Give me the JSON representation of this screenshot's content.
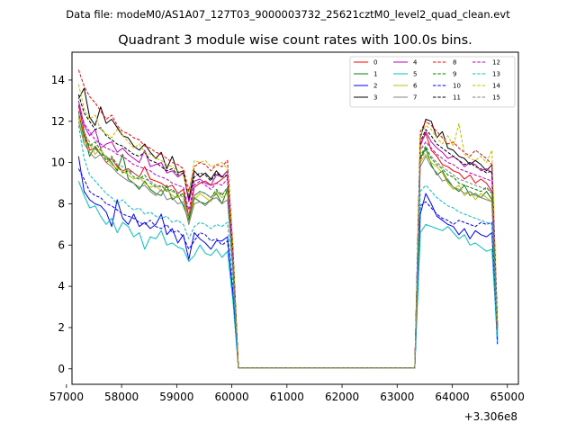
{
  "chart_data": {
    "type": "line",
    "suptitle": "Data file: modeM0/AS1A07_127T03_9000003732_25621cztM0_level2_quad_clean.evt",
    "title": "Quadrant 3 module wise count rates with 100.0s bins.",
    "xlabel": "",
    "ylabel": "",
    "x_offset_label": "+3.306e8",
    "xlim": [
      57100,
      65200
    ],
    "ylim": [
      -0.75,
      15.35
    ],
    "xticks": [
      57000,
      58000,
      59000,
      60000,
      61000,
      62000,
      63000,
      64000,
      65000
    ],
    "xtick_labels": [
      "57000",
      "58000",
      "59000",
      "60000",
      "61000",
      "62000",
      "63000",
      "64000",
      "65000"
    ],
    "yticks": [
      0,
      2,
      4,
      6,
      8,
      10,
      12,
      14
    ],
    "ytick_labels": [
      "0",
      "2",
      "4",
      "6",
      "8",
      "10",
      "12",
      "14"
    ],
    "legend_position": "upper-right",
    "legend_columns": 4,
    "x": [
      57220,
      57320,
      57420,
      57520,
      57620,
      57720,
      57820,
      57920,
      58020,
      58120,
      58220,
      58320,
      58420,
      58520,
      58620,
      58720,
      58820,
      58920,
      59020,
      59120,
      59220,
      59320,
      59420,
      59520,
      59620,
      59720,
      59820,
      59920,
      60020,
      60120,
      60220,
      63320,
      63420,
      63520,
      63620,
      63720,
      63820,
      63920,
      64020,
      64120,
      64220,
      64320,
      64420,
      64520,
      64620,
      64720,
      64820
    ],
    "series": [
      {
        "name": "0",
        "color": "#ff0000",
        "dashed": false,
        "values": [
          12.8,
          11.5,
          10.6,
          10.7,
          10.4,
          10.0,
          10.2,
          9.8,
          9.6,
          9.7,
          9.5,
          9.3,
          9.8,
          9.2,
          9.1,
          9.0,
          8.8,
          8.9,
          8.5,
          8.7,
          7.4,
          8.8,
          9.0,
          9.1,
          8.9,
          9.0,
          9.2,
          9.4,
          5.5,
          0.05,
          0.05,
          0.05,
          10.9,
          11.4,
          10.6,
          10.3,
          9.9,
          9.8,
          9.6,
          9.5,
          9.2,
          9.4,
          9.0,
          9.2,
          9.0,
          8.6,
          2.0
        ]
      },
      {
        "name": "1",
        "color": "#008000",
        "dashed": false,
        "values": [
          12.2,
          11.3,
          10.3,
          10.8,
          10.4,
          10.3,
          10.0,
          9.6,
          10.4,
          9.2,
          9.0,
          8.7,
          9.1,
          8.7,
          8.5,
          8.4,
          8.9,
          8.2,
          8.4,
          7.9,
          7.2,
          8.3,
          8.1,
          8.0,
          8.2,
          8.5,
          8.0,
          8.7,
          5.0,
          0.05,
          0.05,
          0.05,
          10.2,
          10.7,
          9.9,
          9.4,
          9.6,
          9.1,
          8.8,
          8.6,
          8.9,
          8.4,
          8.5,
          8.3,
          8.6,
          8.2,
          1.9
        ]
      },
      {
        "name": "2",
        "color": "#0000ff",
        "dashed": false,
        "values": [
          10.3,
          8.6,
          8.2,
          8.0,
          7.9,
          7.6,
          6.9,
          8.2,
          7.3,
          7.0,
          7.5,
          6.9,
          7.1,
          6.8,
          7.0,
          7.5,
          6.5,
          6.8,
          6.1,
          6.5,
          5.3,
          6.6,
          6.3,
          6.1,
          5.8,
          6.2,
          6.2,
          6.4,
          3.6,
          0.05,
          0.05,
          0.05,
          7.5,
          8.5,
          8.0,
          7.4,
          7.2,
          7.0,
          6.9,
          6.5,
          6.8,
          6.3,
          6.7,
          6.5,
          6.4,
          6.6,
          1.2
        ]
      },
      {
        "name": "3",
        "color": "#000000",
        "dashed": false,
        "values": [
          13.1,
          13.6,
          12.2,
          11.8,
          12.7,
          11.9,
          12.1,
          11.7,
          11.3,
          11.2,
          10.8,
          10.6,
          10.9,
          10.5,
          10.2,
          10.5,
          9.7,
          10.3,
          9.5,
          9.6,
          8.2,
          9.6,
          9.3,
          9.5,
          9.2,
          9.6,
          9.3,
          9.6,
          5.8,
          0.05,
          0.05,
          0.05,
          11.2,
          12.1,
          12.0,
          11.2,
          11.5,
          10.7,
          10.6,
          10.3,
          10.2,
          9.9,
          10.1,
          9.9,
          9.6,
          9.9,
          2.2
        ]
      },
      {
        "name": "4",
        "color": "#bf00bf",
        "dashed": false,
        "values": [
          13.0,
          11.8,
          11.3,
          11.6,
          10.7,
          10.9,
          11.0,
          10.5,
          10.7,
          10.4,
          10.2,
          10.0,
          10.6,
          9.8,
          9.9,
          10.0,
          9.5,
          9.6,
          9.3,
          9.5,
          8.1,
          9.1,
          9.2,
          9.0,
          8.9,
          9.4,
          9.3,
          9.6,
          5.6,
          0.05,
          0.05,
          0.05,
          10.8,
          11.5,
          11.0,
          10.7,
          10.5,
          10.2,
          10.3,
          10.1,
          9.8,
          10.0,
          9.9,
          9.6,
          9.7,
          9.5,
          2.1
        ]
      },
      {
        "name": "5",
        "color": "#00bfbf",
        "dashed": false,
        "values": [
          9.1,
          8.4,
          7.8,
          7.9,
          7.4,
          7.0,
          7.3,
          6.6,
          7.1,
          6.9,
          6.4,
          6.6,
          5.8,
          6.4,
          6.3,
          6.7,
          6.0,
          6.1,
          5.9,
          5.8,
          5.2,
          5.5,
          6.0,
          5.6,
          5.5,
          5.8,
          5.4,
          5.7,
          3.3,
          0.05,
          0.05,
          0.05,
          6.6,
          7.0,
          6.9,
          6.8,
          6.7,
          6.9,
          6.6,
          6.3,
          6.5,
          6.0,
          6.1,
          5.9,
          5.7,
          5.8,
          1.3
        ]
      },
      {
        "name": "6",
        "color": "#bfbf00",
        "dashed": false,
        "values": [
          12.3,
          11.0,
          10.9,
          10.4,
          10.7,
          10.2,
          9.9,
          9.7,
          9.6,
          9.4,
          9.2,
          9.3,
          9.0,
          8.8,
          8.9,
          8.6,
          8.7,
          8.4,
          8.3,
          8.5,
          7.0,
          8.2,
          8.5,
          8.3,
          8.1,
          8.6,
          8.3,
          8.5,
          4.9,
          0.05,
          0.05,
          0.05,
          10.0,
          10.4,
          10.0,
          9.8,
          9.5,
          9.0,
          8.7,
          8.9,
          8.4,
          8.6,
          8.2,
          8.5,
          8.3,
          8.1,
          1.8
        ]
      },
      {
        "name": "7",
        "color": "#808080",
        "dashed": false,
        "values": [
          12.0,
          10.9,
          10.5,
          10.2,
          10.4,
          10.0,
          9.8,
          9.5,
          9.3,
          9.1,
          9.0,
          8.8,
          8.9,
          8.6,
          8.4,
          8.7,
          8.2,
          8.3,
          8.0,
          8.1,
          7.0,
          8.0,
          8.1,
          7.9,
          8.2,
          8.3,
          8.0,
          8.2,
          4.8,
          0.05,
          0.05,
          0.05,
          9.8,
          10.3,
          9.8,
          9.5,
          9.1,
          9.2,
          8.8,
          8.7,
          8.5,
          8.6,
          8.4,
          8.3,
          8.2,
          8.1,
          1.8
        ]
      },
      {
        "name": "8",
        "color": "#ff0000",
        "dashed": true,
        "values": [
          14.5,
          13.7,
          13.2,
          12.9,
          12.5,
          12.1,
          12.3,
          11.8,
          11.5,
          11.4,
          11.2,
          11.1,
          10.8,
          10.7,
          10.5,
          10.4,
          10.2,
          10.0,
          9.9,
          9.7,
          8.6,
          9.8,
          10.0,
          9.9,
          9.6,
          9.9,
          9.8,
          10.1,
          6.0,
          0.05,
          0.05,
          0.05,
          11.5,
          12.0,
          11.8,
          11.5,
          11.2,
          10.9,
          11.0,
          10.7,
          10.5,
          10.3,
          10.6,
          10.4,
          10.2,
          9.9,
          2.4
        ]
      },
      {
        "name": "9",
        "color": "#008000",
        "dashed": true,
        "values": [
          12.5,
          11.2,
          10.8,
          11.0,
          10.6,
          10.1,
          10.3,
          9.9,
          9.5,
          9.6,
          9.3,
          9.2,
          9.4,
          9.0,
          8.8,
          8.9,
          8.6,
          8.7,
          8.4,
          8.5,
          7.3,
          8.4,
          8.6,
          8.5,
          8.3,
          8.7,
          8.4,
          8.8,
          5.1,
          0.05,
          0.05,
          0.05,
          10.3,
          10.8,
          10.2,
          9.9,
          9.7,
          9.4,
          9.3,
          9.0,
          8.9,
          8.8,
          8.7,
          8.6,
          8.8,
          8.5,
          1.9
        ]
      },
      {
        "name": "10",
        "color": "#0000ff",
        "dashed": true,
        "values": [
          9.7,
          9.2,
          8.6,
          8.4,
          8.3,
          8.0,
          7.9,
          7.7,
          7.5,
          7.4,
          7.3,
          7.1,
          7.0,
          7.2,
          6.9,
          6.8,
          7.0,
          6.6,
          6.7,
          6.4,
          5.8,
          6.2,
          6.6,
          6.5,
          6.2,
          6.3,
          6.0,
          6.2,
          3.8,
          0.05,
          0.05,
          0.05,
          7.9,
          8.1,
          7.8,
          7.5,
          7.3,
          7.2,
          7.0,
          7.2,
          7.1,
          7.0,
          6.9,
          7.1,
          7.0,
          7.1,
          1.4
        ]
      },
      {
        "name": "11",
        "color": "#000000",
        "dashed": true,
        "values": [
          13.3,
          12.4,
          12.0,
          11.6,
          11.7,
          11.3,
          11.1,
          10.9,
          10.8,
          10.6,
          10.4,
          10.3,
          10.5,
          10.1,
          10.0,
          9.8,
          9.6,
          9.7,
          9.4,
          9.5,
          8.3,
          9.3,
          9.5,
          9.4,
          9.1,
          9.5,
          9.3,
          9.4,
          5.6,
          0.05,
          0.05,
          0.05,
          11.0,
          11.6,
          11.3,
          10.9,
          10.7,
          10.5,
          10.3,
          10.1,
          9.9,
          10.0,
          9.8,
          9.7,
          9.5,
          9.6,
          2.1
        ]
      },
      {
        "name": "12",
        "color": "#bf00bf",
        "dashed": true,
        "values": [
          12.7,
          11.9,
          11.5,
          11.1,
          10.9,
          10.7,
          10.6,
          10.4,
          10.3,
          10.1,
          9.9,
          9.8,
          9.7,
          9.6,
          9.4,
          9.3,
          9.2,
          9.0,
          8.9,
          8.8,
          7.7,
          8.9,
          9.1,
          8.9,
          8.7,
          9.0,
          8.9,
          9.2,
          5.3,
          0.05,
          0.05,
          0.05,
          10.6,
          11.0,
          10.7,
          10.4,
          10.2,
          10.0,
          9.9,
          9.7,
          9.6,
          9.5,
          9.4,
          9.3,
          9.2,
          9.1,
          2.0
        ]
      },
      {
        "name": "13",
        "color": "#00bfbf",
        "dashed": true,
        "values": [
          11.8,
          10.2,
          9.4,
          9.1,
          8.8,
          8.5,
          8.3,
          8.0,
          8.2,
          7.9,
          7.7,
          7.8,
          7.5,
          7.6,
          7.4,
          7.3,
          7.4,
          7.1,
          7.2,
          7.0,
          6.3,
          6.9,
          7.1,
          7.0,
          6.8,
          7.0,
          6.9,
          7.1,
          4.2,
          0.05,
          0.05,
          0.05,
          8.6,
          8.9,
          8.6,
          8.3,
          8.1,
          7.9,
          7.8,
          7.6,
          7.5,
          7.4,
          7.3,
          7.2,
          7.1,
          7.0,
          1.6
        ]
      },
      {
        "name": "14",
        "color": "#bfbf00",
        "dashed": true,
        "values": [
          13.8,
          12.6,
          12.1,
          12.3,
          11.6,
          11.4,
          11.2,
          11.6,
          11.3,
          11.0,
          10.7,
          10.9,
          10.5,
          10.4,
          10.2,
          10.1,
          9.9,
          9.8,
          9.6,
          9.4,
          8.4,
          10.1,
          10.0,
          10.1,
          9.8,
          9.9,
          10.0,
          9.7,
          5.9,
          0.05,
          0.05,
          0.05,
          11.3,
          11.8,
          11.6,
          11.2,
          10.9,
          11.3,
          10.8,
          11.9,
          10.4,
          10.2,
          10.1,
          10.3,
          10.0,
          10.6,
          2.3
        ]
      },
      {
        "name": "15",
        "color": "#808080",
        "dashed": true,
        "values": [
          12.4,
          11.4,
          11.0,
          10.6,
          10.5,
          10.3,
          10.1,
          9.9,
          9.8,
          9.6,
          9.5,
          9.3,
          9.2,
          9.1,
          8.9,
          8.8,
          8.7,
          8.6,
          8.5,
          8.3,
          7.4,
          8.4,
          8.6,
          8.5,
          8.3,
          8.6,
          8.5,
          8.7,
          5.1,
          0.05,
          0.05,
          0.05,
          10.1,
          10.6,
          10.3,
          10.0,
          9.8,
          9.6,
          9.4,
          9.2,
          9.1,
          9.0,
          8.9,
          8.8,
          8.7,
          8.6,
          1.9
        ]
      }
    ]
  }
}
